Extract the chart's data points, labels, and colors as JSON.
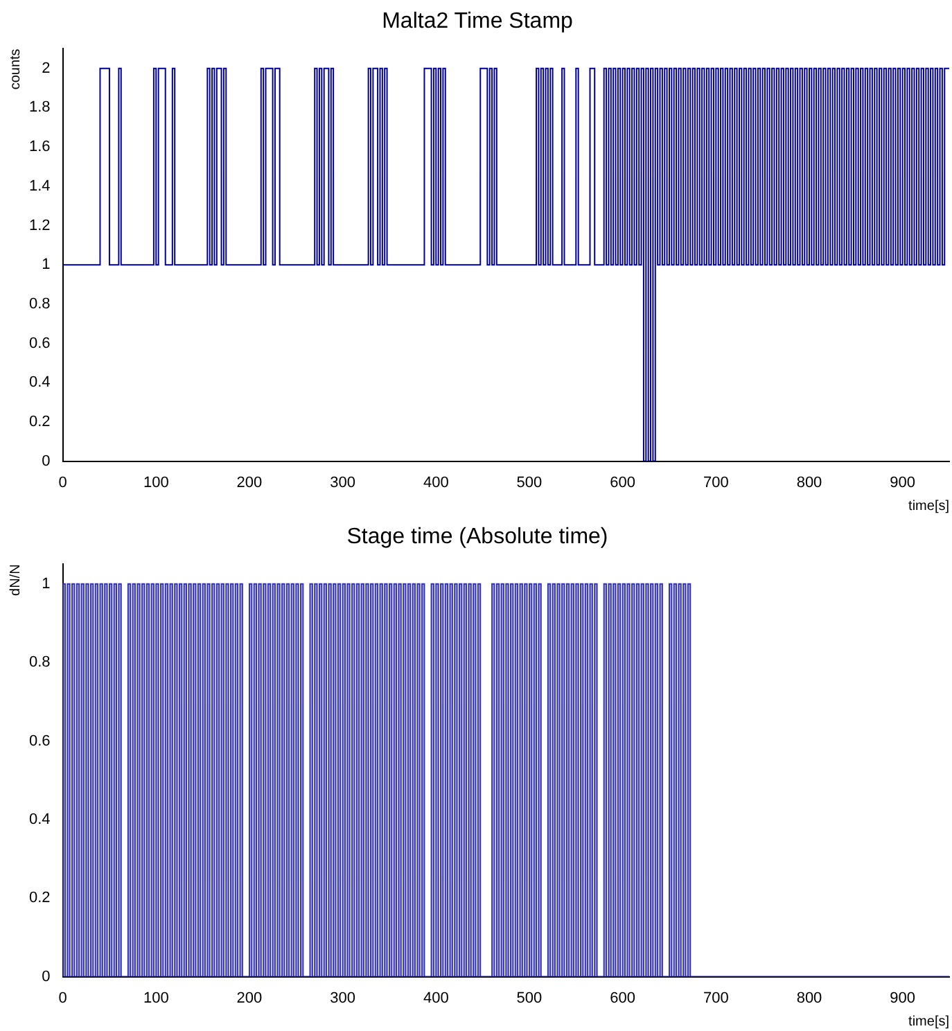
{
  "chart_data": [
    {
      "type": "histogram",
      "title": "Malta2 Time Stamp",
      "xlabel": "time[s]",
      "ylabel": "counts",
      "color": "#000099",
      "xlim": [
        0,
        950
      ],
      "xticks": [
        0,
        100,
        200,
        300,
        400,
        500,
        600,
        700,
        800,
        900
      ],
      "ylim": [
        0,
        2.1
      ],
      "yticks": [
        0,
        0.2,
        0.4,
        0.6,
        0.8,
        1,
        1.2,
        1.4,
        1.6,
        1.8,
        2
      ],
      "bins": [
        0,
        2.5,
        5,
        7.5,
        10,
        12.5,
        15,
        17.5,
        20,
        22.5,
        25,
        27.5,
        30,
        32.5,
        35,
        37.5,
        40,
        42.5,
        45,
        47.5,
        50,
        52.5,
        55,
        57.5,
        60,
        62.5,
        65,
        67.5,
        70,
        72.5,
        75,
        77.5,
        80,
        82.5,
        85,
        87.5,
        90,
        92.5,
        95,
        97.5,
        100,
        102.5,
        105,
        107.5,
        110,
        112.5,
        115,
        117.5,
        120,
        122.5,
        125,
        127.5,
        130,
        132.5,
        135,
        137.5,
        140,
        142.5,
        145,
        147.5,
        150,
        152.5,
        155,
        157.5,
        160,
        162.5,
        165,
        167.5,
        170,
        172.5,
        175,
        177.5,
        180,
        182.5,
        185,
        187.5,
        190,
        192.5,
        195,
        197.5,
        200,
        202.5,
        205,
        207.5,
        210,
        212.5,
        215,
        217.5,
        220,
        222.5,
        225,
        227.5,
        230,
        232.5,
        235,
        237.5,
        240,
        242.5,
        245,
        247.5,
        250,
        252.5,
        255,
        257.5,
        260,
        262.5,
        265,
        267.5,
        270,
        272.5,
        275,
        277.5,
        280,
        282.5,
        285,
        287.5,
        290,
        292.5,
        295,
        297.5,
        300,
        302.5,
        305,
        307.5,
        310,
        312.5,
        315,
        317.5,
        320,
        322.5,
        325,
        327.5,
        330,
        332.5,
        335,
        337.5,
        340,
        342.5,
        345,
        347.5,
        350,
        352.5,
        355,
        357.5,
        360,
        362.5,
        365,
        367.5,
        370,
        372.5,
        375,
        377.5,
        380,
        382.5,
        385,
        387.5,
        390,
        392.5,
        395,
        397.5,
        400,
        402.5,
        405,
        407.5,
        410,
        412.5,
        415,
        417.5,
        420,
        422.5,
        425,
        427.5,
        430,
        432.5,
        435,
        437.5,
        440,
        442.5,
        445,
        447.5,
        450,
        452.5,
        455,
        457.5,
        460,
        462.5,
        465,
        467.5,
        470,
        472.5,
        475,
        477.5,
        480,
        482.5,
        485,
        487.5,
        490,
        492.5,
        495,
        497.5,
        500,
        502.5,
        505,
        507.5,
        510,
        512.5,
        515,
        517.5,
        520,
        522.5,
        525,
        527.5,
        530,
        532.5,
        535,
        537.5,
        540,
        542.5,
        545,
        547.5,
        550,
        552.5,
        555,
        557.5,
        560,
        562.5,
        565,
        567.5,
        570,
        572.5,
        575,
        577.5,
        580,
        582.5,
        585,
        587.5,
        590,
        592.5,
        595,
        597.5,
        600,
        602.5,
        605,
        607.5,
        610,
        612.5,
        615,
        617.5,
        620,
        622.5,
        625,
        627.5,
        630,
        632.5,
        635,
        637.5,
        640,
        642.5,
        645,
        647.5,
        650,
        652.5,
        655,
        657.5,
        660,
        662.5,
        665,
        667.5,
        670,
        672.5,
        675,
        677.5,
        680,
        682.5,
        685,
        687.5,
        690,
        692.5,
        695,
        697.5,
        700,
        702.5,
        705,
        707.5,
        710,
        712.5,
        715,
        717.5,
        720,
        722.5,
        725,
        727.5,
        730,
        732.5,
        735,
        737.5,
        740,
        742.5,
        745,
        747.5,
        750,
        752.5,
        755,
        757.5,
        760,
        762.5,
        765,
        767.5,
        770,
        772.5,
        775,
        777.5,
        780,
        782.5,
        785,
        787.5,
        790,
        792.5,
        795,
        797.5,
        800,
        802.5,
        805,
        807.5,
        810,
        812.5,
        815,
        817.5,
        820,
        822.5,
        825,
        827.5,
        830,
        832.5,
        835,
        837.5,
        840,
        842.5,
        845,
        847.5,
        850,
        852.5,
        855,
        857.5,
        860,
        862.5,
        865,
        867.5,
        870,
        872.5,
        875,
        877.5,
        880,
        882.5,
        885,
        887.5,
        890,
        892.5,
        895,
        897.5,
        900,
        902.5,
        905,
        907.5,
        910,
        912.5,
        915,
        917.5,
        920,
        922.5,
        925,
        927.5,
        930,
        932.5,
        935,
        937.5,
        940,
        942.5,
        945,
        947.5,
        950
      ],
      "values": [
        1,
        1,
        1,
        1,
        1,
        1,
        1,
        1,
        1,
        1,
        1,
        1,
        1,
        1,
        1,
        1,
        1,
        2,
        2,
        2,
        2,
        1,
        1,
        1,
        1,
        2,
        1,
        1,
        1,
        1,
        1,
        1,
        1,
        1,
        1,
        1,
        1,
        1,
        1,
        1,
        2,
        1,
        2,
        2,
        2,
        1,
        1,
        1,
        2,
        1,
        1,
        1,
        1,
        1,
        1,
        1,
        1,
        1,
        1,
        1,
        1,
        1,
        1,
        2,
        1,
        2,
        1,
        2,
        2,
        1,
        2,
        1,
        1,
        1,
        1,
        1,
        1,
        1,
        1,
        1,
        1,
        1,
        1,
        1,
        1,
        1,
        2,
        1,
        2,
        2,
        2,
        1,
        2,
        2,
        1,
        1,
        1,
        1,
        1,
        1,
        1,
        1,
        1,
        1,
        1,
        1,
        1,
        1,
        1,
        2,
        1,
        2,
        1,
        2,
        2,
        1,
        2,
        1,
        1,
        1,
        1,
        1,
        1,
        1,
        1,
        1,
        1,
        1,
        1,
        1,
        1,
        1,
        2,
        1,
        2,
        2,
        1,
        2,
        1,
        2,
        1,
        1,
        1,
        1,
        1,
        1,
        1,
        1,
        1,
        1,
        1,
        1,
        1,
        1,
        1,
        1,
        2,
        2,
        2,
        1,
        2,
        1,
        2,
        1,
        2,
        1,
        1,
        1,
        1,
        1,
        1,
        1,
        1,
        1,
        1,
        1,
        1,
        1,
        1,
        1,
        2,
        2,
        2,
        1,
        2,
        1,
        2,
        1,
        1,
        1,
        1,
        1,
        1,
        1,
        1,
        1,
        1,
        1,
        1,
        1,
        1,
        1,
        1,
        1,
        2,
        1,
        2,
        1,
        2,
        1,
        2,
        1,
        1,
        1,
        1,
        2,
        1,
        1,
        1,
        1,
        1,
        2,
        1,
        1,
        1,
        1,
        1,
        2,
        2,
        1,
        1,
        1,
        1,
        2,
        1,
        2,
        1,
        2,
        1,
        2,
        1,
        2,
        1,
        2,
        1,
        2,
        1,
        2,
        1,
        2,
        0,
        2,
        0,
        2,
        0,
        2,
        1,
        2,
        1,
        2,
        1,
        2,
        1,
        2,
        1,
        2,
        1,
        2,
        1,
        2,
        1,
        2,
        1,
        2,
        1,
        2,
        1,
        2,
        1,
        2,
        1,
        2,
        1,
        2,
        1,
        2,
        1,
        2,
        1,
        2,
        1,
        2,
        1,
        2,
        1,
        2,
        1,
        2,
        1,
        2,
        1,
        2,
        1,
        2,
        1,
        2,
        1,
        2,
        1,
        2,
        1,
        2,
        1,
        2,
        1,
        2,
        1,
        2,
        1,
        2,
        1,
        2,
        1,
        2,
        1,
        2,
        1,
        2,
        1,
        2,
        1,
        2,
        1,
        2,
        1,
        2,
        1,
        2,
        1,
        2,
        1,
        2,
        1,
        2,
        1,
        2,
        1,
        2,
        1,
        2,
        1,
        2,
        1,
        2,
        1,
        2,
        1,
        2,
        1,
        2,
        1,
        2,
        1,
        2,
        1,
        2,
        1,
        2,
        1,
        2,
        1,
        2,
        1,
        2,
        1,
        2,
        1,
        2,
        1,
        2
      ]
    },
    {
      "type": "histogram",
      "title": "Stage time (Absolute time)",
      "xlabel": "time[s]",
      "ylabel": "dN/N",
      "color": "#3333b3",
      "xlim": [
        0,
        950
      ],
      "xticks": [
        0,
        100,
        200,
        300,
        400,
        500,
        600,
        700,
        800,
        900
      ],
      "ylim": [
        0,
        1.05
      ],
      "yticks": [
        0,
        0.2,
        0.4,
        0.6,
        0.8,
        1
      ],
      "bins": [
        0,
        2.5,
        5,
        7.5,
        10,
        12.5,
        15,
        17.5,
        20,
        22.5,
        25,
        27.5,
        30,
        32.5,
        35,
        37.5,
        40,
        42.5,
        45,
        47.5,
        50,
        52.5,
        55,
        57.5,
        60,
        62.5,
        65,
        67.5,
        70,
        72.5,
        75,
        77.5,
        80,
        82.5,
        85,
        87.5,
        90,
        92.5,
        95,
        97.5,
        100,
        102.5,
        105,
        107.5,
        110,
        112.5,
        115,
        117.5,
        120,
        122.5,
        125,
        127.5,
        130,
        132.5,
        135,
        137.5,
        140,
        142.5,
        145,
        147.5,
        150,
        152.5,
        155,
        157.5,
        160,
        162.5,
        165,
        167.5,
        170,
        172.5,
        175,
        177.5,
        180,
        182.5,
        185,
        187.5,
        190,
        192.5,
        195,
        197.5,
        200,
        202.5,
        205,
        207.5,
        210,
        212.5,
        215,
        217.5,
        220,
        222.5,
        225,
        227.5,
        230,
        232.5,
        235,
        237.5,
        240,
        242.5,
        245,
        247.5,
        250,
        252.5,
        255,
        257.5,
        260,
        262.5,
        265,
        267.5,
        270,
        272.5,
        275,
        277.5,
        280,
        282.5,
        285,
        287.5,
        290,
        292.5,
        295,
        297.5,
        300,
        302.5,
        305,
        307.5,
        310,
        312.5,
        315,
        317.5,
        320,
        322.5,
        325,
        327.5,
        330,
        332.5,
        335,
        337.5,
        340,
        342.5,
        345,
        347.5,
        350,
        352.5,
        355,
        357.5,
        360,
        362.5,
        365,
        367.5,
        370,
        372.5,
        375,
        377.5,
        380,
        382.5,
        385,
        387.5,
        390,
        392.5,
        395,
        397.5,
        400,
        402.5,
        405,
        407.5,
        410,
        412.5,
        415,
        417.5,
        420,
        422.5,
        425,
        427.5,
        430,
        432.5,
        435,
        437.5,
        440,
        442.5,
        445,
        447.5,
        450,
        452.5,
        455,
        457.5,
        460,
        462.5,
        465,
        467.5,
        470,
        472.5,
        475,
        477.5,
        480,
        482.5,
        485,
        487.5,
        490,
        492.5,
        495,
        497.5,
        500,
        502.5,
        505,
        507.5,
        510,
        512.5,
        515,
        517.5,
        520,
        522.5,
        525,
        527.5,
        530,
        532.5,
        535,
        537.5,
        540,
        542.5,
        545,
        547.5,
        550,
        552.5,
        555,
        557.5,
        560,
        562.5,
        565,
        567.5,
        570,
        572.5,
        575,
        577.5,
        580,
        582.5,
        585,
        587.5,
        590,
        592.5,
        595,
        597.5,
        600,
        602.5,
        605,
        607.5,
        610,
        612.5,
        615,
        617.5,
        620,
        622.5,
        625,
        627.5,
        630,
        632.5,
        635,
        637.5,
        640,
        642.5,
        645,
        647.5,
        650,
        652.5,
        655,
        657.5,
        660,
        662.5,
        665,
        667.5,
        670,
        672.5,
        675,
        677.5,
        680,
        682.5,
        685,
        687.5,
        690,
        692.5,
        695,
        697.5,
        700,
        702.5,
        705,
        707.5,
        710,
        712.5,
        715,
        717.5,
        720,
        722.5,
        725,
        727.5,
        730,
        732.5,
        735,
        737.5,
        740,
        742.5,
        745,
        747.5,
        750,
        752.5,
        755,
        757.5,
        760,
        762.5,
        765,
        767.5,
        770,
        772.5,
        775,
        777.5,
        780,
        782.5,
        785,
        787.5,
        790,
        792.5,
        795,
        797.5,
        800,
        802.5,
        805,
        807.5,
        810,
        812.5,
        815,
        817.5,
        820,
        822.5,
        825,
        827.5,
        830,
        832.5,
        835,
        837.5,
        840,
        842.5,
        845,
        847.5,
        850,
        852.5,
        855,
        857.5,
        860,
        862.5,
        865,
        867.5,
        870,
        872.5,
        875,
        877.5,
        880,
        882.5,
        885,
        887.5,
        890,
        892.5,
        895,
        897.5,
        900,
        902.5,
        905,
        907.5,
        910,
        912.5,
        915,
        917.5,
        920,
        922.5,
        925,
        927.5,
        930,
        932.5,
        935,
        937.5,
        940,
        942.5,
        945,
        947.5,
        950
      ],
      "values": [
        0,
        1,
        0,
        1,
        0,
        1,
        0,
        1,
        0,
        1,
        0,
        1,
        0,
        1,
        0,
        1,
        0,
        1,
        0,
        1,
        0,
        1,
        0,
        1,
        0,
        1,
        0,
        0,
        0,
        1,
        0,
        1,
        0,
        1,
        0,
        1,
        0,
        1,
        0,
        1,
        0,
        1,
        0,
        1,
        0,
        1,
        0,
        1,
        0,
        1,
        0,
        1,
        0,
        1,
        0,
        1,
        0,
        1,
        0,
        1,
        0,
        1,
        0,
        1,
        0,
        1,
        0,
        1,
        0,
        1,
        0,
        1,
        0,
        1,
        0,
        1,
        0,
        1,
        0,
        0,
        0,
        1,
        0,
        1,
        0,
        1,
        0,
        1,
        0,
        1,
        0,
        1,
        0,
        1,
        0,
        1,
        0,
        1,
        0,
        1,
        0,
        1,
        0,
        1,
        0,
        0,
        0,
        1,
        0,
        1,
        0,
        1,
        0,
        1,
        0,
        1,
        0,
        1,
        0,
        1,
        0,
        1,
        0,
        1,
        0,
        1,
        0,
        1,
        0,
        1,
        0,
        1,
        0,
        1,
        0,
        1,
        0,
        1,
        0,
        1,
        0,
        1,
        0,
        1,
        0,
        1,
        0,
        1,
        0,
        1,
        0,
        1,
        0,
        1,
        0,
        1,
        0,
        0,
        0,
        1,
        0,
        1,
        0,
        1,
        0,
        1,
        0,
        1,
        0,
        1,
        0,
        1,
        0,
        1,
        0,
        1,
        0,
        1,
        0,
        1,
        0,
        0,
        0,
        0,
        0,
        1,
        0,
        1,
        0,
        1,
        0,
        1,
        0,
        1,
        0,
        1,
        0,
        1,
        0,
        1,
        0,
        1,
        0,
        1,
        0,
        1,
        0,
        0,
        0,
        1,
        0,
        1,
        0,
        1,
        0,
        1,
        0,
        1,
        0,
        1,
        0,
        1,
        0,
        1,
        0,
        1,
        0,
        1,
        0,
        1,
        0,
        0,
        0,
        1,
        0,
        1,
        0,
        1,
        0,
        1,
        0,
        1,
        0,
        1,
        0,
        1,
        0,
        1,
        0,
        1,
        0,
        1,
        0,
        1,
        0,
        1,
        0,
        1,
        0,
        0,
        0,
        1,
        0,
        1,
        0,
        1,
        0,
        1,
        0,
        1,
        0,
        0,
        0,
        0,
        0,
        0,
        0,
        0,
        0,
        0,
        0,
        0,
        0,
        0,
        0,
        0,
        0,
        0,
        0,
        0,
        0,
        0,
        0,
        0,
        0,
        0,
        0,
        0,
        0,
        0,
        0,
        0,
        0,
        0,
        0,
        0,
        0,
        0,
        0,
        0,
        0,
        0,
        0,
        0,
        0,
        0,
        0,
        0,
        0,
        0,
        0,
        0,
        0,
        0,
        0,
        0,
        0,
        0,
        0,
        0,
        0,
        0,
        0,
        0,
        0,
        0,
        0,
        0,
        0,
        0,
        0,
        0,
        0,
        0,
        0,
        0,
        0,
        0,
        0,
        0,
        0,
        0,
        0,
        0,
        0,
        0,
        0,
        0,
        0,
        0,
        0,
        0,
        0,
        0,
        0,
        0,
        0,
        0,
        0,
        0,
        0,
        0,
        0,
        0,
        0,
        0,
        0,
        0,
        0,
        0
      ]
    }
  ]
}
